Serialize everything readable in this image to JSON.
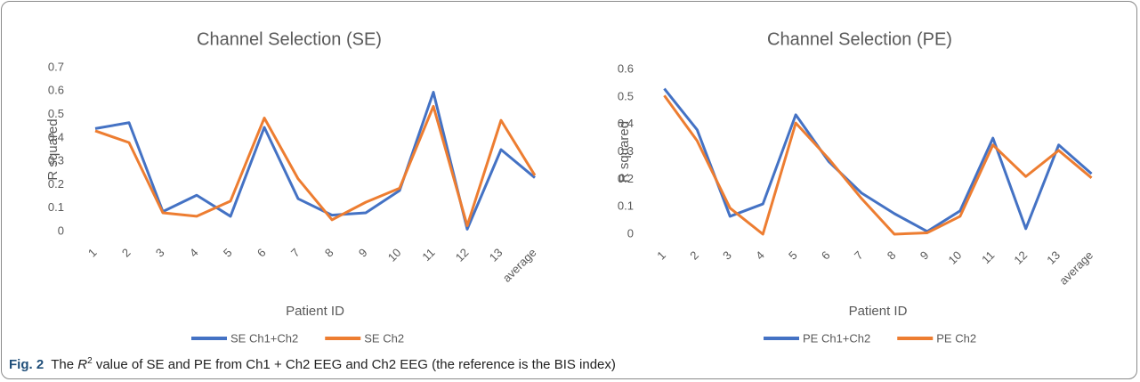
{
  "chart_data": [
    {
      "type": "line",
      "title": "Channel Selection (SE)",
      "x_label": "Patient ID",
      "y_label": "R squared",
      "categories": [
        "1",
        "2",
        "3",
        "4",
        "5",
        "6",
        "7",
        "8",
        "9",
        "10",
        "11",
        "12",
        "13",
        "average"
      ],
      "series": [
        {
          "name": "SE Ch1+Ch2",
          "color": "#4472c4",
          "values": [
            0.44,
            0.465,
            0.085,
            0.155,
            0.065,
            0.445,
            0.14,
            0.07,
            0.08,
            0.175,
            0.595,
            0.01,
            0.35,
            0.23
          ]
        },
        {
          "name": "SE Ch2",
          "color": "#ed7d31",
          "values": [
            0.43,
            0.38,
            0.08,
            0.065,
            0.13,
            0.485,
            0.225,
            0.05,
            0.125,
            0.185,
            0.535,
            0.025,
            0.475,
            0.24
          ]
        }
      ],
      "ylim": [
        0,
        0.7
      ],
      "yticks": [
        0,
        0.1,
        0.2,
        0.3,
        0.4,
        0.5,
        0.6,
        0.7
      ],
      "grid": false,
      "legend": "bottom"
    },
    {
      "type": "line",
      "title": "Channel Selection (PE)",
      "x_label": "Patient ID",
      "y_label": "R squared",
      "categories": [
        "1",
        "2",
        "3",
        "4",
        "5",
        "6",
        "7",
        "8",
        "9",
        "10",
        "11",
        "12",
        "13",
        "average"
      ],
      "series": [
        {
          "name": "PE Ch1+Ch2",
          "color": "#4472c4",
          "values": [
            0.53,
            0.38,
            0.065,
            0.11,
            0.435,
            0.265,
            0.15,
            0.075,
            0.01,
            0.085,
            0.35,
            0.02,
            0.325,
            0.22
          ]
        },
        {
          "name": "PE Ch2",
          "color": "#ed7d31",
          "values": [
            0.505,
            0.34,
            0.095,
            0.0,
            0.405,
            0.275,
            0.13,
            0.0,
            0.005,
            0.065,
            0.325,
            0.21,
            0.305,
            0.205
          ]
        }
      ],
      "ylim": [
        0,
        0.6
      ],
      "yticks": [
        0,
        0.1,
        0.2,
        0.3,
        0.4,
        0.5,
        0.6
      ],
      "grid": false,
      "legend": "bottom"
    }
  ],
  "caption": {
    "label": "Fig. 2",
    "before": "The ",
    "symbol": "R",
    "sup": "2",
    "after": " value of SE and PE from Ch1 + Ch2 EEG and Ch2 EEG (the reference is the BIS index)"
  }
}
